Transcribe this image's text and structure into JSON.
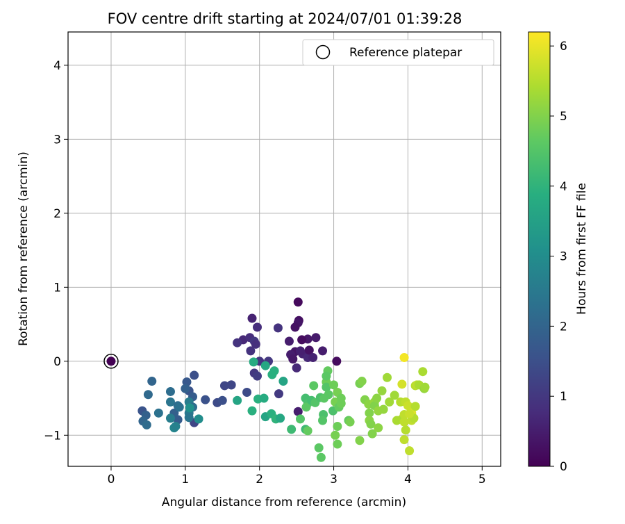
{
  "chart_data": {
    "type": "scatter",
    "title": "FOV centre drift starting at 2024/07/01 01:39:28",
    "xlabel": "Angular distance from reference (arcmin)",
    "ylabel": "Rotation from reference (arcmin)",
    "xlim": [
      -0.58,
      5.25
    ],
    "ylim": [
      -1.42,
      4.45
    ],
    "xticks": [
      0,
      1,
      2,
      3,
      4,
      5
    ],
    "yticks": [
      -1,
      0,
      1,
      2,
      3,
      4
    ],
    "grid": true,
    "legend": {
      "position": "top-right",
      "entries": [
        "Reference platepar"
      ]
    },
    "reference_point": {
      "x": 0,
      "y": 0
    },
    "colorbar": {
      "label": "Hours from first FF file",
      "range": [
        0,
        6.2
      ],
      "ticks": [
        0,
        1,
        2,
        3,
        4,
        5,
        6
      ],
      "colormap": "viridis"
    },
    "series": [
      {
        "points": [
          [
            0,
            0,
            0.0
          ],
          [
            2.52,
            0.8,
            0.15
          ],
          [
            2.53,
            0.55,
            0.25
          ],
          [
            2.52,
            0.52,
            0.35
          ],
          [
            2.48,
            0.46,
            0.3
          ],
          [
            2.65,
            0.3,
            0.4
          ],
          [
            2.4,
            0.27,
            0.5
          ],
          [
            2.57,
            0.29,
            0.2
          ],
          [
            2.76,
            0.32,
            0.45
          ],
          [
            2.48,
            0.13,
            0.35
          ],
          [
            2.42,
            0.09,
            0.5
          ],
          [
            2.58,
            0.1,
            0.6
          ],
          [
            2.45,
            0.03,
            0.4
          ],
          [
            2.65,
            0.05,
            0.7
          ],
          [
            2.55,
            0.14,
            0.55
          ],
          [
            2.67,
            0.15,
            0.3
          ],
          [
            2.85,
            0.14,
            0.5
          ],
          [
            2.72,
            0.05,
            0.6
          ],
          [
            2.5,
            -0.09,
            0.7
          ],
          [
            3.04,
            0.0,
            0.2
          ],
          [
            2.52,
            -0.68,
            0.5
          ],
          [
            1.9,
            0.58,
            0.6
          ],
          [
            1.97,
            0.46,
            0.8
          ],
          [
            2.25,
            0.45,
            0.9
          ],
          [
            1.78,
            0.29,
            0.7
          ],
          [
            1.87,
            0.32,
            0.8
          ],
          [
            1.7,
            0.25,
            0.9
          ],
          [
            1.93,
            0.27,
            1.0
          ],
          [
            1.95,
            0.23,
            0.85
          ],
          [
            1.88,
            0.14,
            0.9
          ],
          [
            2.0,
            0.0,
            0.95
          ],
          [
            2.12,
            0.0,
            1.0
          ],
          [
            1.93,
            -0.16,
            1.0
          ],
          [
            1.97,
            -0.2,
            1.1
          ],
          [
            2.26,
            -0.44,
            1.05
          ],
          [
            1.62,
            -0.32,
            1.2
          ],
          [
            1.53,
            -0.33,
            1.3
          ],
          [
            1.43,
            -0.56,
            1.4
          ],
          [
            1.5,
            -0.53,
            1.5
          ],
          [
            1.27,
            -0.52,
            1.55
          ],
          [
            1.12,
            -0.19,
            1.5
          ],
          [
            1.12,
            -0.83,
            1.3
          ],
          [
            1.05,
            -0.4,
            1.6
          ],
          [
            1.02,
            -0.28,
            1.7
          ],
          [
            1.1,
            -0.48,
            1.8
          ],
          [
            1.0,
            -0.37,
            1.9
          ],
          [
            0.55,
            -0.27,
            2.0
          ],
          [
            0.5,
            -0.45,
            2.1
          ],
          [
            0.42,
            -0.67,
            1.6
          ],
          [
            0.47,
            -0.73,
            1.9
          ],
          [
            0.43,
            -0.81,
            2.0
          ],
          [
            0.48,
            -0.86,
            2.15
          ],
          [
            0.64,
            -0.7,
            2.3
          ],
          [
            0.8,
            -0.41,
            2.2
          ],
          [
            0.8,
            -0.55,
            2.4
          ],
          [
            0.9,
            -0.6,
            2.2
          ],
          [
            0.85,
            -0.7,
            1.9
          ],
          [
            0.9,
            -0.79,
            1.8
          ],
          [
            0.92,
            -0.62,
            2.3
          ],
          [
            1.05,
            -0.55,
            2.6
          ],
          [
            1.1,
            -0.62,
            2.2
          ],
          [
            1.05,
            -0.7,
            2.5
          ],
          [
            1.05,
            -0.76,
            2.4
          ],
          [
            0.8,
            -0.77,
            2.6
          ],
          [
            0.85,
            -0.9,
            2.8
          ],
          [
            0.87,
            -0.88,
            2.7
          ],
          [
            1.18,
            -0.78,
            3.0
          ],
          [
            1.06,
            -0.63,
            3.1
          ],
          [
            1.62,
            -0.32,
            1.3
          ],
          [
            1.7,
            -0.53,
            3.6
          ],
          [
            1.83,
            -0.42,
            1.4
          ],
          [
            1.9,
            -0.67,
            3.9
          ],
          [
            1.98,
            -0.51,
            3.9
          ],
          [
            2.06,
            -0.5,
            3.8
          ],
          [
            2.08,
            -0.75,
            3.6
          ],
          [
            2.16,
            -0.71,
            3.9
          ],
          [
            2.22,
            -0.78,
            4.0
          ],
          [
            2.28,
            -0.77,
            3.7
          ],
          [
            1.92,
            -0.01,
            3.8
          ],
          [
            2.08,
            -0.06,
            3.7
          ],
          [
            2.2,
            -0.13,
            3.9
          ],
          [
            2.17,
            -0.18,
            3.9
          ],
          [
            2.32,
            -0.27,
            3.6
          ],
          [
            2.62,
            -0.5,
            4.3
          ],
          [
            2.65,
            -0.57,
            4.4
          ],
          [
            2.63,
            -0.62,
            4.6
          ],
          [
            2.7,
            -0.53,
            4.3
          ],
          [
            2.73,
            -0.33,
            4.6
          ],
          [
            2.75,
            -0.56,
            4.5
          ],
          [
            2.82,
            -0.49,
            4.4
          ],
          [
            2.87,
            -0.5,
            4.6
          ],
          [
            2.86,
            -0.72,
            4.4
          ],
          [
            2.9,
            -0.28,
            4.8
          ],
          [
            2.9,
            -0.35,
            4.5
          ],
          [
            2.92,
            -0.13,
            4.7
          ],
          [
            2.93,
            -0.45,
            4.6
          ],
          [
            2.99,
            -0.67,
            4.4
          ],
          [
            2.55,
            -0.78,
            4.5
          ],
          [
            2.62,
            -0.92,
            4.2
          ],
          [
            2.43,
            -0.92,
            4.2
          ],
          [
            2.65,
            -0.94,
            4.7
          ],
          [
            2.8,
            -1.17,
            4.6
          ],
          [
            2.83,
            -1.3,
            4.6
          ],
          [
            2.85,
            -0.8,
            4.5
          ],
          [
            2.9,
            -0.2,
            4.6
          ],
          [
            3.0,
            -0.32,
            4.8
          ],
          [
            3.05,
            -0.42,
            4.9
          ],
          [
            3.02,
            -0.55,
            4.9
          ],
          [
            3.07,
            -0.62,
            4.7
          ],
          [
            3.1,
            -0.57,
            4.8
          ],
          [
            3.05,
            -0.88,
            4.8
          ],
          [
            3.02,
            -1.0,
            4.9
          ],
          [
            3.05,
            -1.12,
            4.8
          ],
          [
            3.1,
            -0.5,
            4.8
          ],
          [
            3.2,
            -0.8,
            4.7
          ],
          [
            3.22,
            -0.82,
            4.9
          ],
          [
            3.35,
            -0.3,
            4.9
          ],
          [
            3.38,
            -0.27,
            5.0
          ],
          [
            3.35,
            -1.07,
            5.0
          ],
          [
            3.42,
            -0.52,
            5.0
          ],
          [
            3.47,
            -0.58,
            5.1
          ],
          [
            3.48,
            -0.7,
            5.0
          ],
          [
            3.48,
            -0.8,
            5.1
          ],
          [
            3.5,
            -0.85,
            5.0
          ],
          [
            3.52,
            -0.98,
            5.0
          ],
          [
            3.55,
            -0.55,
            5.2
          ],
          [
            3.55,
            -0.6,
            5.0
          ],
          [
            3.58,
            -0.5,
            5.1
          ],
          [
            3.6,
            -0.67,
            5.2
          ],
          [
            3.6,
            -0.9,
            5.1
          ],
          [
            3.65,
            -0.4,
            5.2
          ],
          [
            3.67,
            -0.65,
            5.2
          ],
          [
            3.72,
            -0.22,
            5.3
          ],
          [
            3.75,
            -0.55,
            5.3
          ],
          [
            3.82,
            -0.46,
            5.3
          ],
          [
            3.85,
            -0.8,
            5.4
          ],
          [
            3.9,
            -0.55,
            5.5
          ],
          [
            3.92,
            -0.78,
            5.4
          ],
          [
            3.95,
            -0.72,
            5.6
          ],
          [
            3.92,
            -0.31,
            5.8
          ],
          [
            3.95,
            0.05,
            6.1
          ],
          [
            3.97,
            -0.55,
            5.6
          ],
          [
            3.95,
            -0.82,
            5.6
          ],
          [
            3.97,
            -0.93,
            5.5
          ],
          [
            3.95,
            -1.06,
            5.6
          ],
          [
            4.02,
            -1.21,
            5.6
          ],
          [
            4.0,
            -0.6,
            5.7
          ],
          [
            4.05,
            -0.7,
            5.9
          ],
          [
            4.05,
            -0.8,
            5.6
          ],
          [
            4.08,
            -0.77,
            5.5
          ],
          [
            4.1,
            -0.61,
            5.5
          ],
          [
            4.1,
            -0.33,
            5.5
          ],
          [
            4.12,
            -0.32,
            5.6
          ],
          [
            4.15,
            -0.32,
            5.4
          ],
          [
            4.2,
            -0.14,
            5.4
          ],
          [
            4.22,
            -0.37,
            5.2
          ],
          [
            4.23,
            -0.35,
            5.3
          ],
          [
            4.02,
            -0.71,
            5.7
          ]
        ]
      }
    ]
  }
}
